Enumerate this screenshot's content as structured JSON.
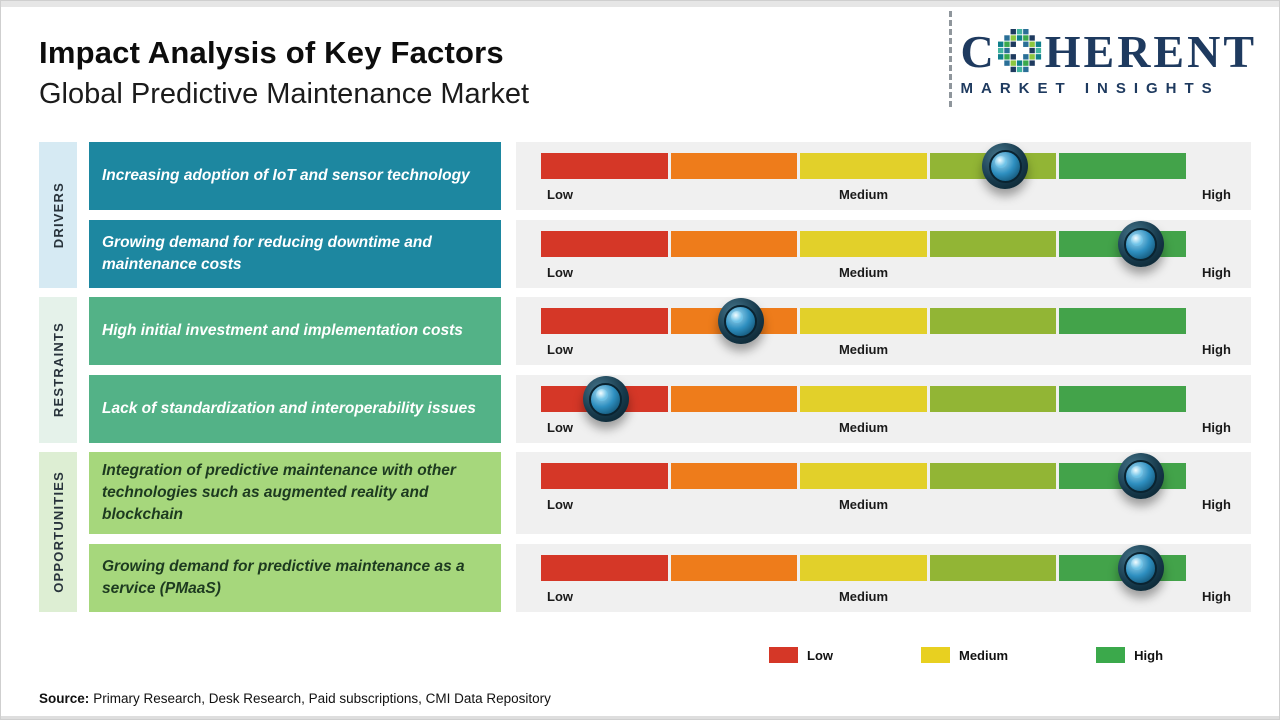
{
  "header": {
    "title": "Impact Analysis of Key Factors",
    "subtitle": "Global Predictive Maintenance Market"
  },
  "logo": {
    "wordmark_c": "C",
    "wordmark_rest": "HERENT",
    "tagline": "MARKET INSIGHTS",
    "navy": "#1e3a5f",
    "mosaic_colors": [
      "#0f7f8b",
      "#39a94c",
      "#1e3a5f",
      "#43b5a0",
      "#2a6f97",
      "#8cc63f"
    ]
  },
  "gauge": {
    "labels": {
      "low": "Low",
      "medium": "Medium",
      "high": "High"
    },
    "segment_colors": [
      "#d53727",
      "#ee7c1b",
      "#e2d02a",
      "#92b535",
      "#43a34a"
    ],
    "track_color": "#f0f0f0"
  },
  "groups": [
    {
      "id": "drivers",
      "label": "DRIVERS",
      "band_color": "#d6eaf3",
      "box_color": "#1d87a0",
      "text_color": "#ffffff",
      "rows": [
        {
          "factor": "Increasing adoption of IoT and sensor technology",
          "impact_pct": 72
        },
        {
          "factor": "Growing demand for reducing downtime and maintenance costs",
          "impact_pct": 93
        }
      ]
    },
    {
      "id": "restraints",
      "label": "RESTRAINTS",
      "band_color": "#e5f2ea",
      "box_color": "#53b287",
      "text_color": "#ffffff",
      "rows": [
        {
          "factor": "High initial investment and implementation costs",
          "impact_pct": 31
        },
        {
          "factor": "Lack of standardization and interoperability issues",
          "impact_pct": 10
        }
      ]
    },
    {
      "id": "opportunities",
      "label": "OPPORTUNITIES",
      "band_color": "#ddeed3",
      "box_color": "#a6d77c",
      "text_color": "#1d3a20",
      "rows": [
        {
          "factor": "Integration of predictive maintenance with other technologies such as augmented reality and blockchain",
          "impact_pct": 93
        },
        {
          "factor": "Growing demand for predictive maintenance as a service (PMaaS)",
          "impact_pct": 93
        }
      ]
    }
  ],
  "legend": {
    "items": [
      {
        "label": "Low",
        "color": "#d53727"
      },
      {
        "label": "Medium",
        "color": "#e8d020"
      },
      {
        "label": "High",
        "color": "#3ba94b"
      }
    ]
  },
  "source": {
    "label": "Source:",
    "text": "Primary Research, Desk Research, Paid subscriptions, CMI Data Repository"
  },
  "chart_data": {
    "type": "bar",
    "title": "Impact Analysis of Key Factors",
    "subtitle": "Global Predictive Maintenance Market",
    "scale": {
      "min_label": "Low",
      "mid_label": "Medium",
      "max_label": "High",
      "range_pct": [
        0,
        100
      ]
    },
    "rows": [
      {
        "category": "Drivers",
        "factor": "Increasing adoption of IoT and sensor technology",
        "impact_pct": 72,
        "impact_level": "Medium-High"
      },
      {
        "category": "Drivers",
        "factor": "Growing demand for reducing downtime and maintenance costs",
        "impact_pct": 93,
        "impact_level": "High"
      },
      {
        "category": "Restraints",
        "factor": "High initial investment and implementation costs",
        "impact_pct": 31,
        "impact_level": "Low-Medium"
      },
      {
        "category": "Restraints",
        "factor": "Lack of standardization and interoperability issues",
        "impact_pct": 10,
        "impact_level": "Low"
      },
      {
        "category": "Opportunities",
        "factor": "Integration of predictive maintenance with other technologies such as augmented reality and blockchain",
        "impact_pct": 93,
        "impact_level": "High"
      },
      {
        "category": "Opportunities",
        "factor": "Growing demand for predictive maintenance as a service (PMaaS)",
        "impact_pct": 93,
        "impact_level": "High"
      }
    ],
    "legend": [
      "Low",
      "Medium",
      "High"
    ],
    "grid": false,
    "legend_position": "bottom-right"
  }
}
